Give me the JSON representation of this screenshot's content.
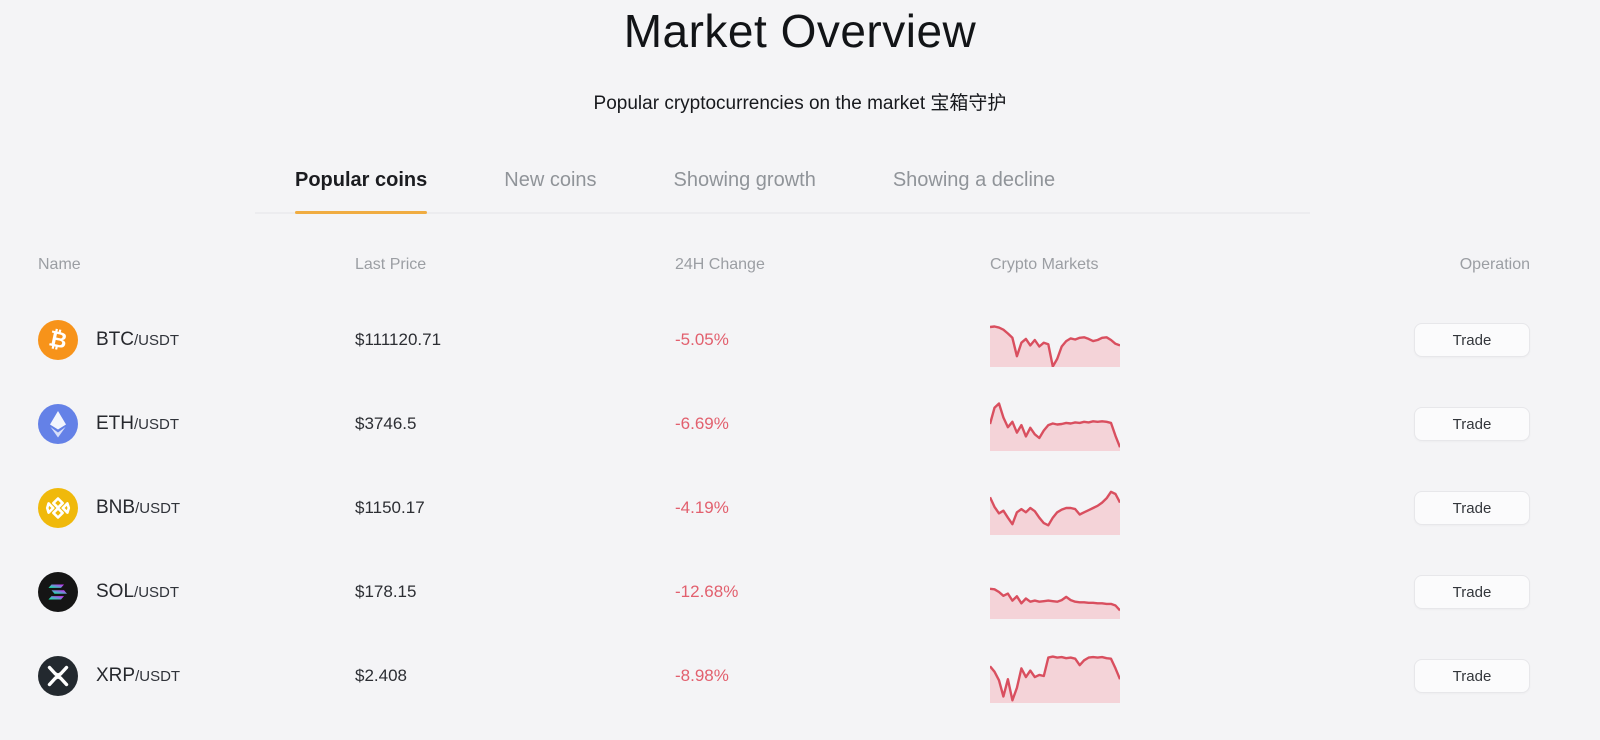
{
  "page": {
    "title": "Market Overview",
    "subtitle": "Popular cryptocurrencies on the market 宝箱守护"
  },
  "tabs": [
    {
      "label": "Popular coins",
      "active": true
    },
    {
      "label": "New coins",
      "active": false
    },
    {
      "label": "Showing growth",
      "active": false
    },
    {
      "label": "Showing a decline",
      "active": false
    }
  ],
  "table": {
    "headers": [
      "Name",
      "Last Price",
      "24H Change",
      "Crypto Markets",
      "Operation"
    ],
    "trade_label": "Trade",
    "rows": [
      {
        "symbol": "BTC",
        "quote": "/USDT",
        "price": "$111120.71",
        "change": "-5.05%",
        "icon": "btc-icon",
        "sparkline": [
          26,
          25,
          27,
          31,
          38,
          46,
          80,
          55,
          48,
          60,
          50,
          62,
          55,
          58,
          99,
          85,
          62,
          52,
          47,
          49,
          46,
          45,
          48,
          52,
          50,
          46,
          45,
          50,
          57,
          60
        ]
      },
      {
        "symbol": "ETH",
        "quote": "/USDT",
        "price": "$3746.5",
        "change": "-6.69%",
        "icon": "eth-icon",
        "sparkline": [
          50,
          20,
          12,
          38,
          56,
          46,
          66,
          52,
          73,
          57,
          69,
          76,
          62,
          52,
          49,
          51,
          50,
          48,
          49,
          47,
          48,
          46,
          47,
          45,
          46,
          45,
          46,
          48,
          72,
          93
        ]
      },
      {
        "symbol": "BNB",
        "quote": "/USDT",
        "price": "$1150.17",
        "change": "-4.19%",
        "icon": "bnb-icon",
        "sparkline": [
          30,
          48,
          60,
          55,
          68,
          80,
          58,
          52,
          58,
          50,
          56,
          68,
          78,
          82,
          68,
          58,
          53,
          50,
          50,
          52,
          62,
          58,
          54,
          50,
          46,
          40,
          32,
          20,
          24,
          40
        ]
      },
      {
        "symbol": "SOL",
        "quote": "/USDT",
        "price": "$178.15",
        "change": "-12.68%",
        "icon": "sol-icon",
        "sparkline": [
          44,
          45,
          50,
          57,
          53,
          66,
          58,
          71,
          62,
          68,
          66,
          68,
          67,
          66,
          67,
          68,
          65,
          59,
          65,
          68,
          69,
          69,
          70,
          70,
          71,
          71,
          72,
          72,
          75,
          84
        ]
      },
      {
        "symbol": "XRP",
        "quote": "/USDT",
        "price": "$2.408",
        "change": "-8.98%",
        "icon": "xrp-icon",
        "sparkline": [
          32,
          42,
          58,
          88,
          56,
          95,
          72,
          36,
          52,
          40,
          52,
          48,
          50,
          16,
          14,
          16,
          15,
          17,
          16,
          18,
          30,
          21,
          16,
          15,
          16,
          15,
          17,
          18,
          36,
          56
        ]
      }
    ]
  },
  "colors": {
    "accent_orange": "#f0ac41",
    "change_red": "#e2606e",
    "spark_line": "#d94f5f",
    "spark_fill": "#f4d3d8",
    "btc_orange": "#f7931a",
    "eth_blue": "#6481e7",
    "bnb_yellow": "#f0b90b",
    "sol_black": "#151515",
    "xrp_dark": "#23292f"
  }
}
